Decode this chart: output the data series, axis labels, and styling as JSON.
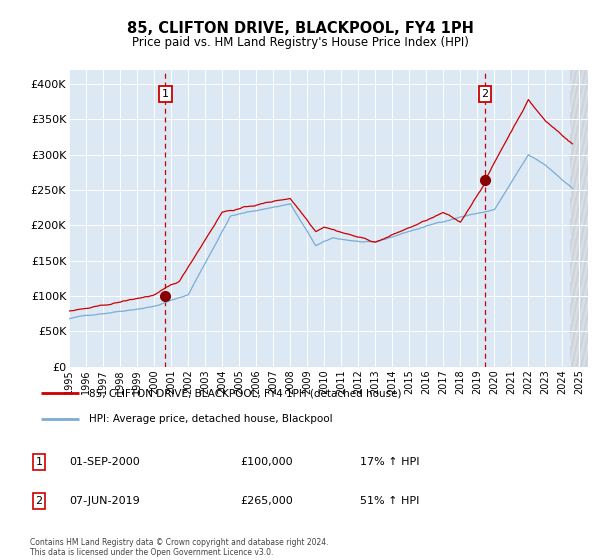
{
  "title": "85, CLIFTON DRIVE, BLACKPOOL, FY4 1PH",
  "subtitle": "Price paid vs. HM Land Registry's House Price Index (HPI)",
  "fig_bg_color": "#ffffff",
  "plot_bg_color": "#dce9f5",
  "ylim": [
    0,
    420000
  ],
  "yticks": [
    0,
    50000,
    100000,
    150000,
    200000,
    250000,
    300000,
    350000,
    400000
  ],
  "ytick_labels": [
    "£0",
    "£50K",
    "£100K",
    "£150K",
    "£200K",
    "£250K",
    "£300K",
    "£350K",
    "£400K"
  ],
  "legend_line1": "85, CLIFTON DRIVE, BLACKPOOL, FY4 1PH (detached house)",
  "legend_line2": "HPI: Average price, detached house, Blackpool",
  "annotation1_label": "1",
  "annotation1_date": "01-SEP-2000",
  "annotation1_price": "£100,000",
  "annotation1_hpi": "17% ↑ HPI",
  "annotation2_label": "2",
  "annotation2_date": "07-JUN-2019",
  "annotation2_price": "£265,000",
  "annotation2_hpi": "51% ↑ HPI",
  "footer": "Contains HM Land Registry data © Crown copyright and database right 2024.\nThis data is licensed under the Open Government Licence v3.0.",
  "line1_color": "#cc0000",
  "line2_color": "#7aadd4",
  "marker_color": "#880000",
  "sale1_x": 2000.67,
  "sale1_y": 100000,
  "sale2_x": 2019.44,
  "sale2_y": 265000,
  "xmin": 1995.0,
  "xmax": 2025.5,
  "xtick_years": [
    1995,
    1996,
    1997,
    1998,
    1999,
    2000,
    2001,
    2002,
    2003,
    2004,
    2005,
    2006,
    2007,
    2008,
    2009,
    2010,
    2011,
    2012,
    2013,
    2014,
    2015,
    2016,
    2017,
    2018,
    2019,
    2020,
    2021,
    2022,
    2023,
    2024,
    2025
  ]
}
